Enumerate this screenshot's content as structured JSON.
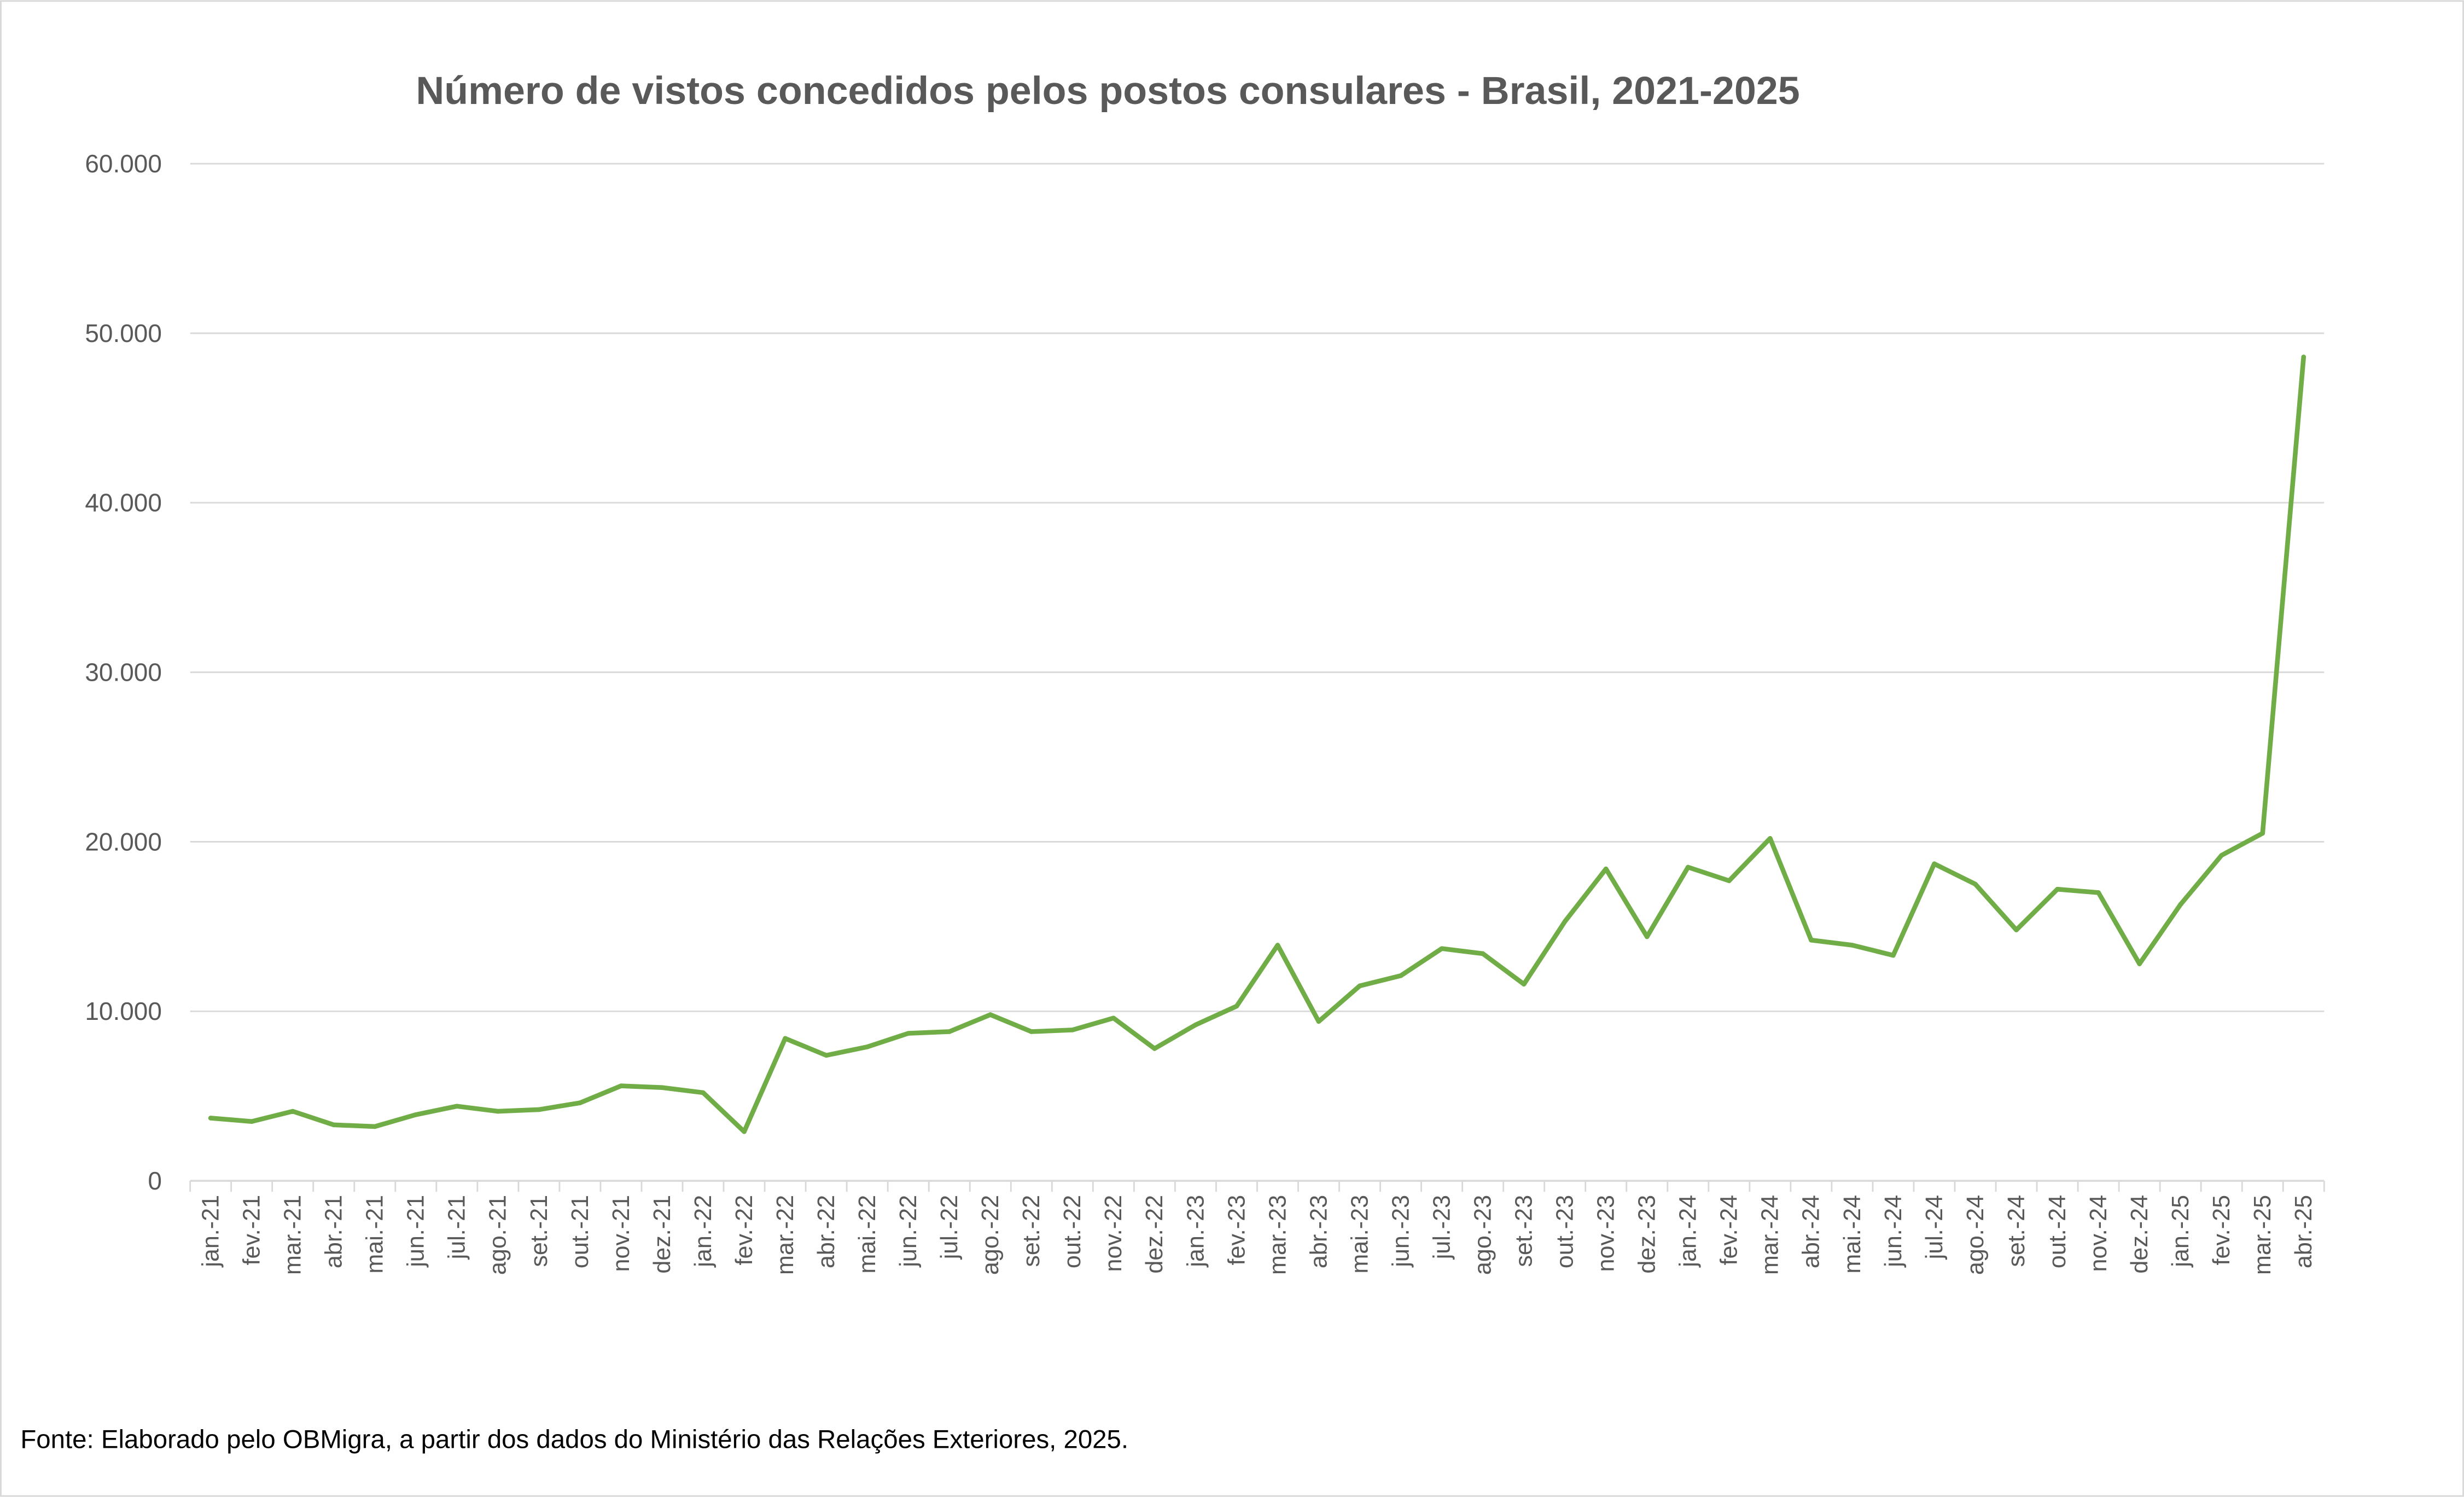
{
  "chart_data": {
    "type": "line",
    "title": "Número de vistos concedidos pelos postos consulares - Brasil, 2021-2025",
    "xlabel": "",
    "ylabel": "",
    "ylim": [
      0,
      60000
    ],
    "yticks": [
      0,
      10000,
      20000,
      30000,
      40000,
      50000,
      60000
    ],
    "ytick_labels": [
      "0",
      "10.000",
      "20.000",
      "30.000",
      "40.000",
      "50.000",
      "60.000"
    ],
    "grid": true,
    "legend": "none",
    "color": "#70AD47",
    "categories": [
      "jan.-21",
      "fev.-21",
      "mar.-21",
      "abr.-21",
      "mai.-21",
      "jun.-21",
      "jul.-21",
      "ago.-21",
      "set.-21",
      "out.-21",
      "nov.-21",
      "dez.-21",
      "jan.-22",
      "fev.-22",
      "mar.-22",
      "abr.-22",
      "mai.-22",
      "jun.-22",
      "jul.-22",
      "ago.-22",
      "set.-22",
      "out.-22",
      "nov.-22",
      "dez.-22",
      "jan.-23",
      "fev.-23",
      "mar.-23",
      "abr.-23",
      "mai.-23",
      "jun.-23",
      "jul.-23",
      "ago.-23",
      "set.-23",
      "out.-23",
      "nov.-23",
      "dez.-23",
      "jan.-24",
      "fev.-24",
      "mar.-24",
      "abr.-24",
      "mai.-24",
      "jun.-24",
      "jul.-24",
      "ago.-24",
      "set.-24",
      "out.-24",
      "nov.-24",
      "dez.-24",
      "jan.-25",
      "fev.-25",
      "mar.-25",
      "abr.-25"
    ],
    "values": [
      3700,
      3500,
      4100,
      3300,
      3200,
      3900,
      4400,
      4100,
      4200,
      4600,
      5600,
      5500,
      5200,
      2900,
      8400,
      7400,
      7900,
      8700,
      8800,
      9800,
      8800,
      8900,
      9600,
      7800,
      9200,
      10300,
      13900,
      9400,
      11500,
      12100,
      13700,
      13400,
      11600,
      15300,
      18400,
      14400,
      18500,
      17700,
      20200,
      14200,
      13900,
      13300,
      18700,
      17500,
      14800,
      17200,
      17000,
      12800,
      16300,
      19200,
      20500,
      48600
    ]
  },
  "source": "Fonte: Elaborado pelo OBMigra, a partir dos dados do Ministério das Relações Exteriores, 2025."
}
